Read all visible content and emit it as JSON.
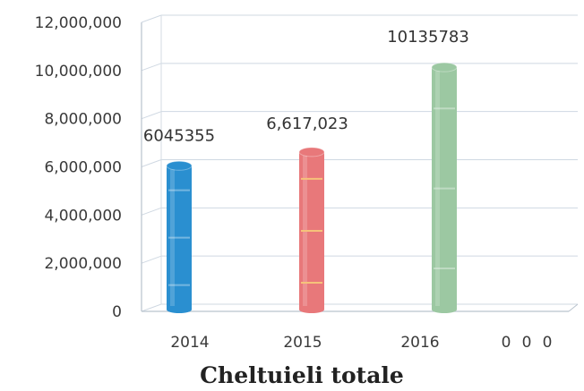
{
  "chart_data": {
    "type": "bar",
    "title": "Cheltuieli totale",
    "categories": [
      "2014",
      "2015",
      "2016"
    ],
    "values": [
      6045355,
      6617023,
      10135783
    ],
    "data_labels": [
      "6045355",
      "6,617,023",
      "10135783"
    ],
    "extra_x_ticks": [
      "0",
      "0",
      "0"
    ],
    "ylim": [
      0,
      12000000
    ],
    "yticks": [
      "0",
      "2,000,000",
      "4,000,000",
      "6,000,000",
      "8,000,000",
      "10,000,000",
      "12,000,000"
    ],
    "grid": true,
    "legend": "none",
    "colors": [
      "#2a8fd0",
      "#e8787a",
      "#9cc8a2"
    ]
  }
}
